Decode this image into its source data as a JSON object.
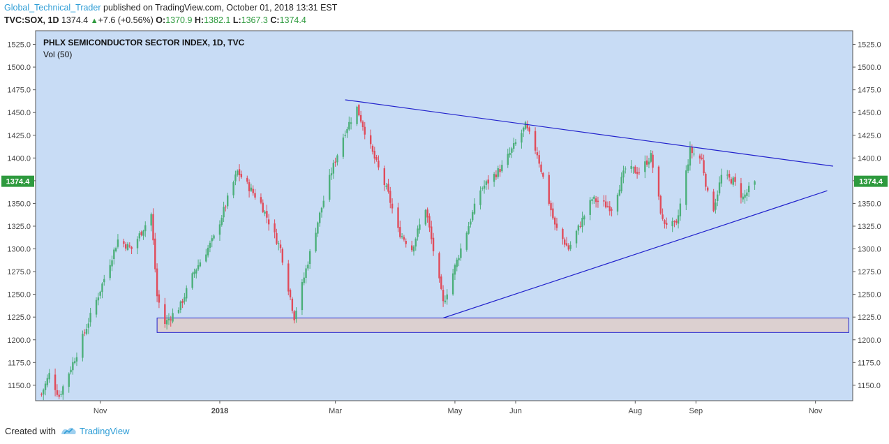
{
  "header": {
    "author": "Global_Technical_Trader",
    "published": "published on TradingView.com, October 01, 2018 13:31 EST",
    "symbol": "TVC:SOX, 1D",
    "last": "1374.4",
    "change_arrow": "▲",
    "change": "+7.6 (+0.56%)",
    "o_label": "O:",
    "o_val": "1370.9",
    "h_label": "H:",
    "h_val": "1382.1",
    "l_label": "L:",
    "l_val": "1367.3",
    "c_label": "C:",
    "c_val": "1374.4"
  },
  "footer": {
    "created_with": "Created with",
    "brand": "TradingView"
  },
  "chart_data": {
    "type": "candlestick",
    "title": "PHLX SEMICONDUCTOR SECTOR INDEX, 1D, TVC",
    "indicator": "Vol (50)",
    "y_ticks": [
      1150,
      1175,
      1200,
      1225,
      1250,
      1275,
      1300,
      1325,
      1350,
      1375,
      1400,
      1425,
      1450,
      1475,
      1500,
      1525
    ],
    "y_tick_labels": [
      "1150.0",
      "1175.0",
      "1200.0",
      "1225.0",
      "1250.0",
      "1275.0",
      "1300.0",
      "1325.0",
      "1350.0",
      "1375.0",
      "1400.0",
      "1425.0",
      "1450.0",
      "1475.0",
      "1500.0",
      "1525.0"
    ],
    "ylim": [
      1133,
      1540
    ],
    "x_start": "2017-10-02",
    "xlim": [
      "2017-09-29",
      "2018-11-20"
    ],
    "x_ticks": [
      {
        "label": "Nov",
        "date": "2017-11-01",
        "bold": false
      },
      {
        "label": "2018",
        "date": "2018-01-01",
        "bold": true
      },
      {
        "label": "Mar",
        "date": "2018-03-01",
        "bold": false
      },
      {
        "label": "May",
        "date": "2018-05-01",
        "bold": false
      },
      {
        "label": "Jun",
        "date": "2018-06-01",
        "bold": false
      },
      {
        "label": "Aug",
        "date": "2018-08-01",
        "bold": false
      },
      {
        "label": "Sep",
        "date": "2018-09-01",
        "bold": false
      },
      {
        "label": "Nov",
        "date": "2018-11-01",
        "bold": false
      }
    ],
    "price_label": "1374.4",
    "last_price": 1374.4,
    "key_closes": [
      {
        "date": "2017-10-02",
        "close": 1140
      },
      {
        "date": "2017-10-06",
        "close": 1162
      },
      {
        "date": "2017-10-11",
        "close": 1138
      },
      {
        "date": "2017-10-20",
        "close": 1185
      },
      {
        "date": "2017-11-01",
        "close": 1255
      },
      {
        "date": "2017-11-10",
        "close": 1310
      },
      {
        "date": "2017-11-17",
        "close": 1300
      },
      {
        "date": "2017-11-27",
        "close": 1338
      },
      {
        "date": "2017-11-30",
        "close": 1248
      },
      {
        "date": "2017-12-04",
        "close": 1218
      },
      {
        "date": "2017-12-12",
        "close": 1238
      },
      {
        "date": "2017-12-19",
        "close": 1275
      },
      {
        "date": "2017-12-29",
        "close": 1312
      },
      {
        "date": "2018-01-10",
        "close": 1385
      },
      {
        "date": "2018-01-22",
        "close": 1350
      },
      {
        "date": "2018-02-01",
        "close": 1300
      },
      {
        "date": "2018-02-08",
        "close": 1225
      },
      {
        "date": "2018-02-20",
        "close": 1330
      },
      {
        "date": "2018-02-27",
        "close": 1385
      },
      {
        "date": "2018-03-06",
        "close": 1430
      },
      {
        "date": "2018-03-12",
        "close": 1455
      },
      {
        "date": "2018-03-20",
        "close": 1405
      },
      {
        "date": "2018-03-28",
        "close": 1360
      },
      {
        "date": "2018-04-02",
        "close": 1320
      },
      {
        "date": "2018-04-09",
        "close": 1300
      },
      {
        "date": "2018-04-16",
        "close": 1345
      },
      {
        "date": "2018-04-25",
        "close": 1240
      },
      {
        "date": "2018-05-04",
        "close": 1300
      },
      {
        "date": "2018-05-14",
        "close": 1365
      },
      {
        "date": "2018-05-25",
        "close": 1390
      },
      {
        "date": "2018-06-06",
        "close": 1435
      },
      {
        "date": "2018-06-12",
        "close": 1405
      },
      {
        "date": "2018-06-21",
        "close": 1325
      },
      {
        "date": "2018-06-28",
        "close": 1300
      },
      {
        "date": "2018-07-10",
        "close": 1355
      },
      {
        "date": "2018-07-20",
        "close": 1345
      },
      {
        "date": "2018-07-27",
        "close": 1388
      },
      {
        "date": "2018-08-03",
        "close": 1385
      },
      {
        "date": "2018-08-09",
        "close": 1402
      },
      {
        "date": "2018-08-15",
        "close": 1330
      },
      {
        "date": "2018-08-22",
        "close": 1325
      },
      {
        "date": "2018-08-29",
        "close": 1408
      },
      {
        "date": "2018-09-04",
        "close": 1398
      },
      {
        "date": "2018-09-07",
        "close": 1360
      },
      {
        "date": "2018-09-10",
        "close": 1345
      },
      {
        "date": "2018-09-14",
        "close": 1380
      },
      {
        "date": "2018-09-20",
        "close": 1375
      },
      {
        "date": "2018-09-25",
        "close": 1356
      },
      {
        "date": "2018-10-01",
        "close": 1374.4
      }
    ],
    "annotations": {
      "descending_line": {
        "from": {
          "date": "2018-03-06",
          "price": 1464
        },
        "to": {
          "date": "2018-11-10",
          "price": 1391
        }
      },
      "ascending_line": {
        "from": {
          "date": "2018-04-25",
          "price": 1224
        },
        "to": {
          "date": "2018-11-07",
          "price": 1364
        }
      },
      "support_zone": {
        "from": "2017-11-30",
        "to": "2018-11-18",
        "low": 1208,
        "high": 1224
      }
    },
    "colors": {
      "background": "#c8dcf5",
      "up": "#4caf7a",
      "down": "#e04b5a",
      "trendline": "#2222cc",
      "zone_fill": "#dcd0d0",
      "price_tag": "#2e9a3e",
      "axis_text": "#444444"
    },
    "grid": false
  }
}
